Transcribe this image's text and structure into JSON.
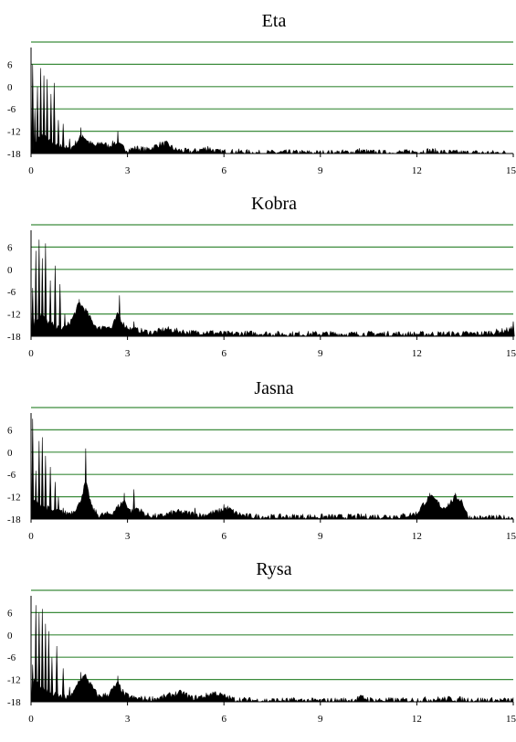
{
  "colors": {
    "grid": "#3c8c3c",
    "fill": "#000000",
    "axis": "#000000"
  },
  "chart_data": [
    {
      "type": "area",
      "title": "Eta",
      "xlim": [
        0,
        15
      ],
      "ylim": [
        -18,
        12
      ],
      "yticks": [
        6,
        0,
        -6,
        -12,
        -18
      ],
      "xticks": [
        0,
        3,
        6,
        9,
        12,
        15
      ],
      "grid": true,
      "peaks": [
        [
          0.05,
          6
        ],
        [
          0.12,
          -6
        ],
        [
          0.2,
          0
        ],
        [
          0.3,
          5
        ],
        [
          0.4,
          3
        ],
        [
          0.5,
          2
        ],
        [
          0.62,
          -2
        ],
        [
          0.72,
          1
        ],
        [
          0.85,
          -9
        ],
        [
          1.0,
          -10
        ],
        [
          1.2,
          -14
        ],
        [
          1.55,
          -11
        ],
        [
          1.6,
          -13
        ],
        [
          2.7,
          -12
        ],
        [
          3.3,
          -16
        ],
        [
          5.5,
          -16
        ],
        [
          10.2,
          -17
        ],
        [
          12.4,
          -17
        ]
      ],
      "envelope": [
        [
          0,
          -18
        ],
        [
          0.1,
          -16
        ],
        [
          0.2,
          -14
        ],
        [
          0.4,
          -13
        ],
        [
          0.6,
          -15
        ],
        [
          0.8,
          -16
        ],
        [
          1.0,
          -16
        ],
        [
          1.2,
          -17
        ],
        [
          1.4,
          -15
        ],
        [
          1.6,
          -13
        ],
        [
          1.8,
          -15
        ],
        [
          2.0,
          -16
        ],
        [
          2.2,
          -15
        ],
        [
          2.4,
          -16
        ],
        [
          2.6,
          -15
        ],
        [
          2.8,
          -16
        ],
        [
          3.0,
          -17
        ],
        [
          3.3,
          -16.5
        ],
        [
          3.6,
          -17
        ],
        [
          4.0,
          -15.5
        ],
        [
          4.2,
          -15.3
        ],
        [
          4.5,
          -17
        ],
        [
          5.0,
          -17.5
        ],
        [
          5.5,
          -16.5
        ],
        [
          5.8,
          -17.5
        ],
        [
          6.5,
          -17.5
        ],
        [
          7.0,
          -17.8
        ],
        [
          8.0,
          -17.7
        ],
        [
          9.0,
          -17.8
        ],
        [
          10.0,
          -17.6
        ],
        [
          10.2,
          -17.2
        ],
        [
          10.5,
          -17.6
        ],
        [
          11.0,
          -17.8
        ],
        [
          12.0,
          -17.5
        ],
        [
          12.4,
          -17.2
        ],
        [
          12.8,
          -17.6
        ],
        [
          13.5,
          -17.8
        ],
        [
          14.5,
          -17.8
        ],
        [
          15,
          -17.8
        ]
      ]
    },
    {
      "type": "area",
      "title": "Kobra",
      "xlim": [
        0,
        15
      ],
      "ylim": [
        -18,
        12
      ],
      "yticks": [
        6,
        0,
        -6,
        -12,
        -18
      ],
      "xticks": [
        0,
        3,
        6,
        9,
        12,
        15
      ],
      "grid": true,
      "peaks": [
        [
          0.05,
          -5
        ],
        [
          0.15,
          5
        ],
        [
          0.25,
          8
        ],
        [
          0.35,
          3
        ],
        [
          0.45,
          7
        ],
        [
          0.6,
          -3
        ],
        [
          0.75,
          1
        ],
        [
          0.9,
          -4
        ],
        [
          1.05,
          -12
        ],
        [
          1.25,
          -14
        ],
        [
          1.5,
          -8
        ],
        [
          2.75,
          -7
        ],
        [
          3.2,
          -14
        ],
        [
          15.0,
          -14
        ]
      ],
      "envelope": [
        [
          0,
          -18
        ],
        [
          0.1,
          -14
        ],
        [
          0.3,
          -12
        ],
        [
          0.5,
          -14
        ],
        [
          0.7,
          -15
        ],
        [
          0.9,
          -16
        ],
        [
          1.1,
          -15.5
        ],
        [
          1.3,
          -13
        ],
        [
          1.5,
          -9
        ],
        [
          1.7,
          -11
        ],
        [
          1.9,
          -14
        ],
        [
          2.1,
          -16
        ],
        [
          2.3,
          -15
        ],
        [
          2.5,
          -16
        ],
        [
          2.7,
          -12
        ],
        [
          2.9,
          -15
        ],
        [
          3.1,
          -16
        ],
        [
          3.4,
          -16.5
        ],
        [
          3.8,
          -17
        ],
        [
          4.2,
          -16
        ],
        [
          4.5,
          -16.5
        ],
        [
          5.0,
          -17
        ],
        [
          5.5,
          -16.8
        ],
        [
          6.0,
          -17.3
        ],
        [
          7.0,
          -17.2
        ],
        [
          8.0,
          -17.4
        ],
        [
          9.0,
          -17.3
        ],
        [
          10.0,
          -17.4
        ],
        [
          11.0,
          -17.3
        ],
        [
          12.0,
          -17.4
        ],
        [
          13.0,
          -17.3
        ],
        [
          14.0,
          -17.3
        ],
        [
          14.7,
          -16.5
        ],
        [
          15,
          -16
        ]
      ]
    },
    {
      "type": "area",
      "title": "Jasna",
      "xlim": [
        0,
        15
      ],
      "ylim": [
        -18,
        12
      ],
      "yticks": [
        6,
        0,
        -6,
        -12,
        -18
      ],
      "xticks": [
        0,
        3,
        6,
        9,
        12,
        15
      ],
      "grid": true,
      "peaks": [
        [
          0.05,
          9
        ],
        [
          0.15,
          -5
        ],
        [
          0.25,
          3
        ],
        [
          0.35,
          4
        ],
        [
          0.45,
          -1
        ],
        [
          0.6,
          -4
        ],
        [
          0.75,
          -8
        ],
        [
          0.85,
          -12
        ],
        [
          1.0,
          -15
        ],
        [
          1.7,
          1
        ],
        [
          2.9,
          -11
        ],
        [
          3.2,
          -10
        ],
        [
          5.1,
          -15
        ],
        [
          6.0,
          -14
        ],
        [
          12.4,
          -11
        ],
        [
          13.2,
          -11
        ]
      ],
      "envelope": [
        [
          0,
          -18
        ],
        [
          0.1,
          -13
        ],
        [
          0.3,
          -14
        ],
        [
          0.5,
          -15
        ],
        [
          0.7,
          -16
        ],
        [
          0.9,
          -16
        ],
        [
          1.1,
          -16.5
        ],
        [
          1.3,
          -16
        ],
        [
          1.5,
          -14
        ],
        [
          1.7,
          -8
        ],
        [
          1.9,
          -15
        ],
        [
          2.1,
          -17
        ],
        [
          2.5,
          -16.5
        ],
        [
          2.9,
          -13
        ],
        [
          3.1,
          -16
        ],
        [
          3.3,
          -15
        ],
        [
          3.6,
          -17
        ],
        [
          4.0,
          -17.3
        ],
        [
          4.5,
          -16
        ],
        [
          5.0,
          -16.5
        ],
        [
          5.3,
          -17
        ],
        [
          5.8,
          -16
        ],
        [
          6.1,
          -15
        ],
        [
          6.4,
          -16.5
        ],
        [
          6.7,
          -17.2
        ],
        [
          7.5,
          -17.4
        ],
        [
          8.5,
          -17.3
        ],
        [
          9.5,
          -17.4
        ],
        [
          10.5,
          -17.3
        ],
        [
          11.5,
          -17.2
        ],
        [
          12.0,
          -16.5
        ],
        [
          12.2,
          -14
        ],
        [
          12.4,
          -12
        ],
        [
          12.6,
          -13
        ],
        [
          12.8,
          -15
        ],
        [
          13.0,
          -14
        ],
        [
          13.2,
          -12
        ],
        [
          13.4,
          -13
        ],
        [
          13.6,
          -17.5
        ],
        [
          14.0,
          -17.7
        ],
        [
          15,
          -17.6
        ]
      ]
    },
    {
      "type": "area",
      "title": "Rysa",
      "xlim": [
        0,
        15
      ],
      "ylim": [
        -18,
        12
      ],
      "yticks": [
        6,
        0,
        -6,
        -12,
        -18
      ],
      "xticks": [
        0,
        3,
        6,
        9,
        12,
        15
      ],
      "grid": true,
      "peaks": [
        [
          0.05,
          -8
        ],
        [
          0.15,
          8
        ],
        [
          0.25,
          6
        ],
        [
          0.35,
          7
        ],
        [
          0.45,
          3
        ],
        [
          0.55,
          1
        ],
        [
          0.65,
          -6
        ],
        [
          0.8,
          -3
        ],
        [
          1.0,
          -9
        ],
        [
          1.2,
          -14
        ],
        [
          1.55,
          -10
        ],
        [
          2.7,
          -11
        ],
        [
          4.6,
          -16
        ],
        [
          5.6,
          -16
        ],
        [
          10.2,
          -16.5
        ]
      ],
      "envelope": [
        [
          0,
          -18
        ],
        [
          0.1,
          -12
        ],
        [
          0.3,
          -14
        ],
        [
          0.5,
          -15
        ],
        [
          0.7,
          -16
        ],
        [
          0.9,
          -16.5
        ],
        [
          1.1,
          -17
        ],
        [
          1.3,
          -16
        ],
        [
          1.5,
          -12
        ],
        [
          1.7,
          -11
        ],
        [
          1.9,
          -14
        ],
        [
          2.1,
          -16.5
        ],
        [
          2.4,
          -16
        ],
        [
          2.7,
          -13
        ],
        [
          2.9,
          -16
        ],
        [
          3.2,
          -17
        ],
        [
          3.6,
          -17.2
        ],
        [
          4.0,
          -17
        ],
        [
          4.4,
          -16
        ],
        [
          4.7,
          -15.5
        ],
        [
          5.0,
          -17
        ],
        [
          5.4,
          -16.5
        ],
        [
          5.7,
          -15.5
        ],
        [
          6.0,
          -16.5
        ],
        [
          6.3,
          -17.3
        ],
        [
          7.0,
          -17.6
        ],
        [
          8.0,
          -17.6
        ],
        [
          9.0,
          -17.7
        ],
        [
          10.0,
          -17.5
        ],
        [
          10.3,
          -16.8
        ],
        [
          10.6,
          -17.5
        ],
        [
          11.5,
          -17.6
        ],
        [
          12.5,
          -17.3
        ],
        [
          13.0,
          -17.2
        ],
        [
          13.5,
          -17.4
        ],
        [
          14.5,
          -17.6
        ],
        [
          15,
          -17.6
        ]
      ]
    }
  ]
}
